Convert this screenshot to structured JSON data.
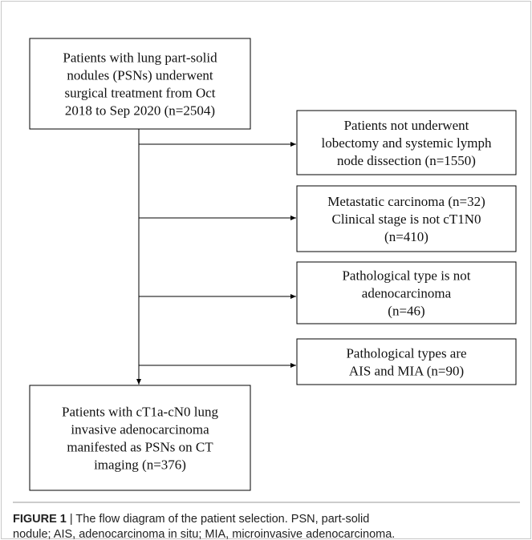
{
  "nodes": [
    {
      "lines": [
        "Patients with lung part-solid",
        "nodules (PSNs) underwent",
        "surgical treatment from Oct",
        "2018 to Sep 2020 (n=2504)"
      ]
    },
    {
      "lines": [
        "Patients not underwent",
        "lobectomy and systemic lymph",
        "node dissection (n=1550)"
      ]
    },
    {
      "lines": [
        "Metastatic carcinoma (n=32)",
        "Clinical stage is not cT1N0",
        "(n=410)"
      ]
    },
    {
      "lines": [
        "Pathological type is not",
        "adenocarcinoma",
        "(n=46)"
      ]
    },
    {
      "lines": [
        "Pathological types are",
        "AIS and MIA (n=90)"
      ]
    },
    {
      "lines": [
        "Patients with cT1a-cN0 lung",
        "invasive adenocarcinoma",
        "manifested as PSNs on CT",
        "imaging (n=376)"
      ]
    }
  ],
  "caption": {
    "label": "FIGURE 1",
    "lines": [
      "| The flow diagram of the patient selection. PSN, part-solid",
      "nodule; AIS, adenocarcinoma in situ; MIA, microinvasive adenocarcinoma."
    ]
  }
}
